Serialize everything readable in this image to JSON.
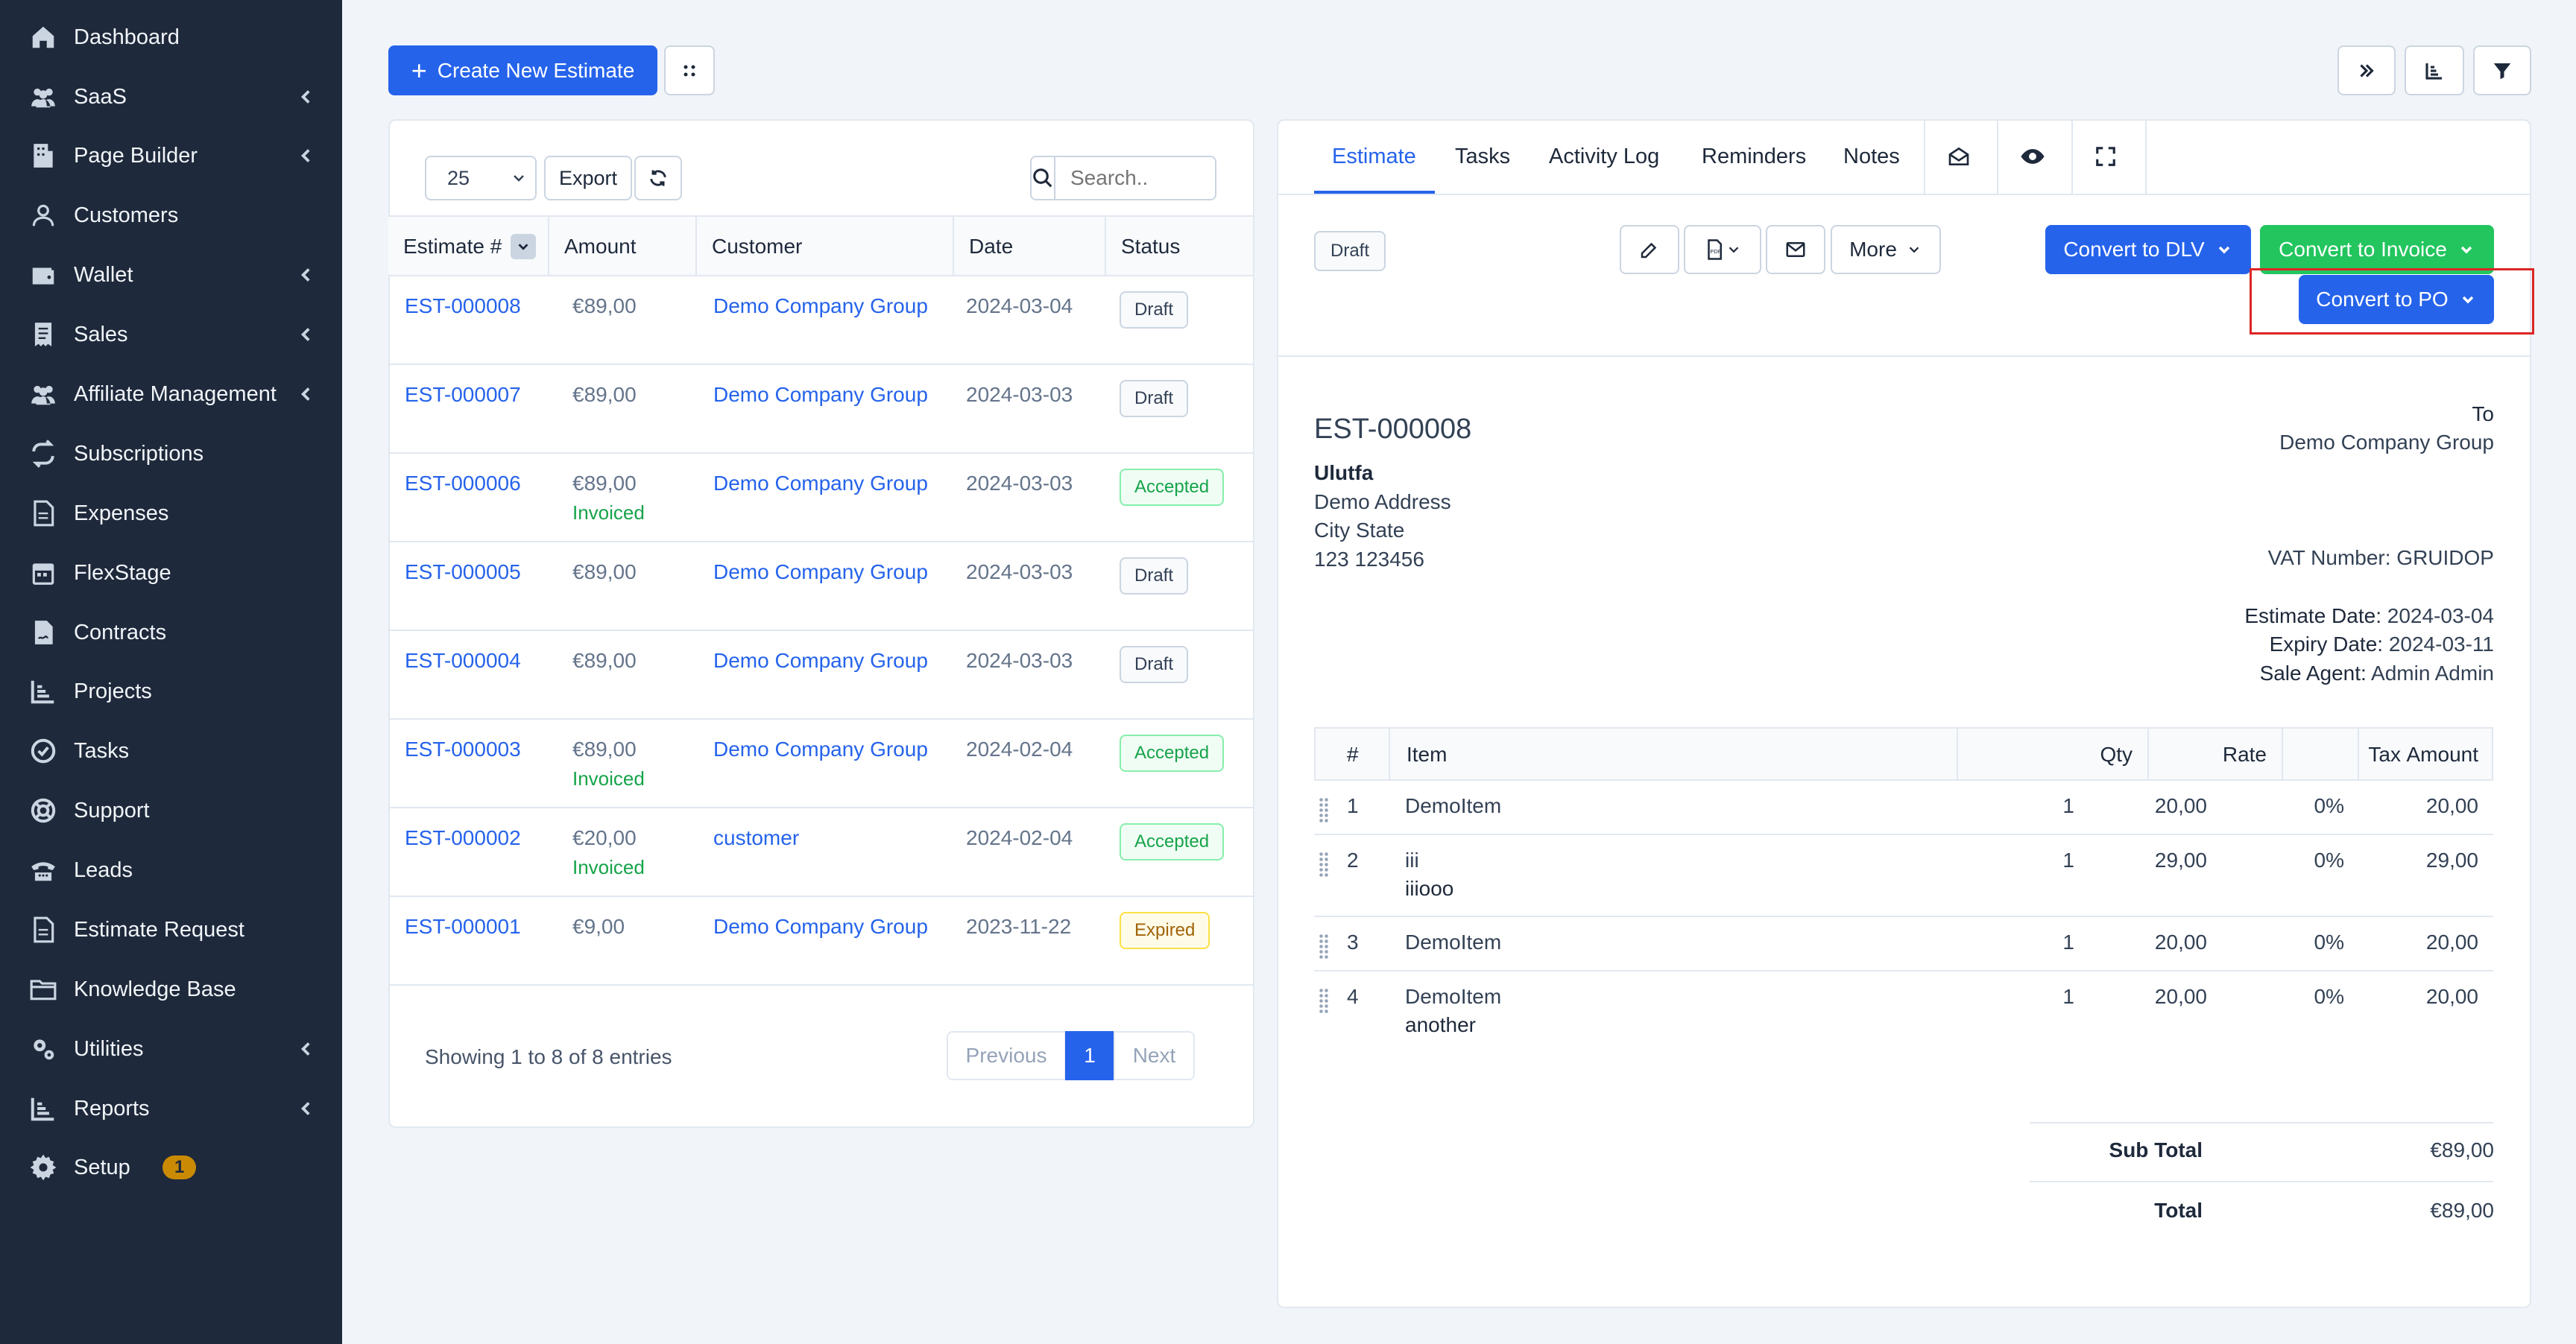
{
  "sidebar": {
    "items": [
      {
        "label": "Dashboard",
        "icon": "home-icon",
        "chevron": false
      },
      {
        "label": "SaaS",
        "icon": "users-icon",
        "chevron": true
      },
      {
        "label": "Page Builder",
        "icon": "building-icon",
        "chevron": true
      },
      {
        "label": "Customers",
        "icon": "user-icon",
        "chevron": false
      },
      {
        "label": "Wallet",
        "icon": "wallet-icon",
        "chevron": true
      },
      {
        "label": "Sales",
        "icon": "receipt-icon",
        "chevron": true
      },
      {
        "label": "Affiliate Management",
        "icon": "users-icon",
        "chevron": true
      },
      {
        "label": "Subscriptions",
        "icon": "repeat-icon",
        "chevron": false
      },
      {
        "label": "Expenses",
        "icon": "file-icon",
        "chevron": false
      },
      {
        "label": "FlexStage",
        "icon": "calendar-icon",
        "chevron": false
      },
      {
        "label": "Contracts",
        "icon": "file-contract-icon",
        "chevron": false
      },
      {
        "label": "Projects",
        "icon": "chart-icon",
        "chevron": false
      },
      {
        "label": "Tasks",
        "icon": "check-circle-icon",
        "chevron": false
      },
      {
        "label": "Support",
        "icon": "lifebuoy-icon",
        "chevron": false
      },
      {
        "label": "Leads",
        "icon": "phone-icon",
        "chevron": false
      },
      {
        "label": "Estimate Request",
        "icon": "file-icon",
        "chevron": false
      },
      {
        "label": "Knowledge Base",
        "icon": "folder-icon",
        "chevron": false
      },
      {
        "label": "Utilities",
        "icon": "cogs-icon",
        "chevron": true
      },
      {
        "label": "Reports",
        "icon": "chart-icon",
        "chevron": true
      },
      {
        "label": "Setup",
        "icon": "gear-icon",
        "chevron": false,
        "badge": "1"
      }
    ]
  },
  "toolbar": {
    "create_label": "Create New Estimate"
  },
  "list": {
    "page_size": "25",
    "export_label": "Export",
    "search_placeholder": "Search..",
    "columns": [
      "Estimate #",
      "Amount",
      "Customer",
      "Date",
      "Status"
    ],
    "rows": [
      {
        "number": "EST-000008",
        "amount": "€89,00",
        "invoiced": "",
        "customer": "Demo Company Group",
        "date": "2024-03-04",
        "status": "Draft"
      },
      {
        "number": "EST-000007",
        "amount": "€89,00",
        "invoiced": "",
        "customer": "Demo Company Group",
        "date": "2024-03-03",
        "status": "Draft"
      },
      {
        "number": "EST-000006",
        "amount": "€89,00",
        "invoiced": "Invoiced",
        "customer": "Demo Company Group",
        "date": "2024-03-03",
        "status": "Accepted"
      },
      {
        "number": "EST-000005",
        "amount": "€89,00",
        "invoiced": "",
        "customer": "Demo Company Group",
        "date": "2024-03-03",
        "status": "Draft"
      },
      {
        "number": "EST-000004",
        "amount": "€89,00",
        "invoiced": "",
        "customer": "Demo Company Group",
        "date": "2024-03-03",
        "status": "Draft"
      },
      {
        "number": "EST-000003",
        "amount": "€89,00",
        "invoiced": "Invoiced",
        "customer": "Demo Company Group",
        "date": "2024-02-04",
        "status": "Accepted"
      },
      {
        "number": "EST-000002",
        "amount": "€20,00",
        "invoiced": "Invoiced",
        "customer": "customer",
        "date": "2024-02-04",
        "status": "Accepted"
      },
      {
        "number": "EST-000001",
        "amount": "€9,00",
        "invoiced": "",
        "customer": "Demo Company Group",
        "date": "2023-11-22",
        "status": "Expired"
      }
    ],
    "showing": "Showing 1 to 8 of 8 entries",
    "prev_label": "Previous",
    "page": "1",
    "next_label": "Next"
  },
  "detail": {
    "tabs": [
      "Estimate",
      "Tasks",
      "Activity Log",
      "Reminders",
      "Notes"
    ],
    "status": "Draft",
    "more_label": "More",
    "convert_dlv": "Convert to DLV",
    "convert_invoice": "Convert to Invoice",
    "convert_po": "Convert to PO",
    "number": "EST-000008",
    "company": "Ulutfa",
    "address_lines": [
      "Demo Address",
      "City State",
      "123 123456"
    ],
    "to_label": "To",
    "to_customer": "Demo Company Group",
    "vat": "VAT Number: GRUIDOP",
    "estimate_date_label": "Estimate Date:",
    "estimate_date": "2024-03-04",
    "expiry_date_label": "Expiry Date:",
    "expiry_date": "2024-03-11",
    "sale_agent_label": "Sale Agent:",
    "sale_agent": "Admin Admin",
    "item_columns": [
      "#",
      "Item",
      "Qty",
      "Rate",
      "Tax",
      "Amount"
    ],
    "items": [
      {
        "n": "1",
        "name": "DemoItem",
        "desc": "",
        "qty": "1",
        "rate": "20,00",
        "tax": "0%",
        "amount": "20,00"
      },
      {
        "n": "2",
        "name": "iii",
        "desc": "iiiooo",
        "qty": "1",
        "rate": "29,00",
        "tax": "0%",
        "amount": "29,00"
      },
      {
        "n": "3",
        "name": "DemoItem",
        "desc": "",
        "qty": "1",
        "rate": "20,00",
        "tax": "0%",
        "amount": "20,00"
      },
      {
        "n": "4",
        "name": "DemoItem",
        "desc": "another",
        "qty": "1",
        "rate": "20,00",
        "tax": "0%",
        "amount": "20,00"
      }
    ],
    "subtotal_label": "Sub Total",
    "subtotal": "€89,00",
    "total_label": "Total",
    "total": "€89,00"
  }
}
